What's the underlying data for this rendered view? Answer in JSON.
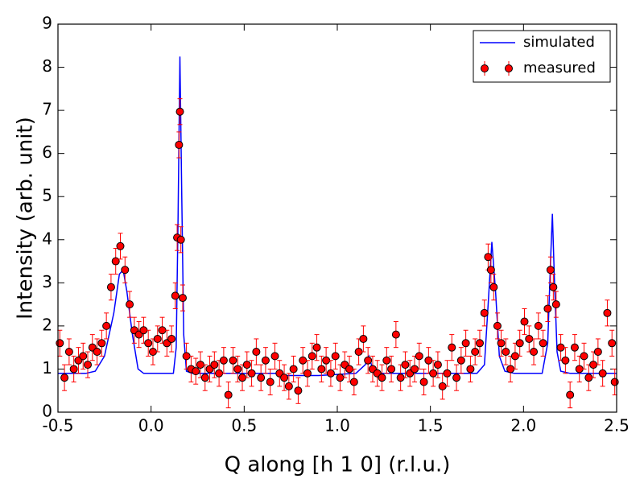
{
  "chart_data": {
    "type": "scatter",
    "xlabel": "Q along [h 1 0]  (r.l.u.)",
    "ylabel": "Intensity (arb. unit)",
    "xlim": [
      -0.5,
      2.5
    ],
    "xticks": [
      -0.5,
      {
        "value": 0,
        "label": "0.0"
      },
      0.5,
      {
        "value": 1,
        "label": "1.0"
      },
      1.5,
      {
        "value": 2,
        "label": "2.0"
      },
      2.5
    ],
    "ylim": [
      0,
      9
    ],
    "yticks": [
      0,
      1,
      2,
      3,
      4,
      5,
      6,
      7,
      8,
      9
    ],
    "legend": "upper right",
    "series": [
      {
        "name": "simulated",
        "color": "#0000ff",
        "kind": "line",
        "x": [
          -0.5,
          -0.35,
          -0.3,
          -0.25,
          -0.2,
          -0.17,
          -0.15,
          -0.13,
          -0.1,
          -0.07,
          -0.04,
          0.12,
          0.135,
          0.145,
          0.155,
          0.165,
          0.175,
          0.19,
          0.22,
          0.7,
          0.72,
          0.9,
          1.1,
          1.15,
          1.17,
          1.19,
          1.22,
          1.75,
          1.79,
          1.81,
          1.83,
          1.85,
          1.87,
          1.9,
          1.95,
          2.1,
          2.13,
          2.145,
          2.155,
          2.165,
          2.18,
          2.2,
          2.25,
          2.5
        ],
        "values": [
          0.9,
          0.9,
          0.95,
          1.3,
          2.3,
          3.2,
          3.3,
          2.8,
          1.8,
          1.0,
          0.9,
          0.9,
          1.5,
          4.5,
          8.25,
          5.0,
          1.8,
          0.95,
          0.9,
          0.9,
          0.85,
          0.85,
          0.9,
          1.1,
          1.3,
          1.0,
          0.9,
          0.9,
          1.1,
          2.5,
          3.95,
          2.8,
          1.3,
          0.95,
          0.9,
          0.9,
          1.6,
          3.5,
          4.6,
          3.2,
          1.4,
          0.95,
          0.9,
          0.9
        ]
      },
      {
        "name": "measured",
        "color": "#ff0000",
        "kind": "errorbar",
        "error": 0.3,
        "x": [
          -0.49,
          -0.465,
          -0.44,
          -0.415,
          -0.39,
          -0.365,
          -0.34,
          -0.315,
          -0.29,
          -0.265,
          -0.24,
          -0.215,
          -0.19,
          -0.165,
          -0.14,
          -0.115,
          -0.09,
          -0.065,
          -0.04,
          -0.015,
          0.01,
          0.035,
          0.06,
          0.085,
          0.11,
          0.13,
          0.14,
          0.15,
          0.155,
          0.16,
          0.17,
          0.19,
          0.215,
          0.24,
          0.265,
          0.29,
          0.315,
          0.34,
          0.365,
          0.39,
          0.415,
          0.44,
          0.465,
          0.49,
          0.515,
          0.54,
          0.565,
          0.59,
          0.615,
          0.64,
          0.665,
          0.69,
          0.715,
          0.74,
          0.765,
          0.79,
          0.815,
          0.84,
          0.865,
          0.89,
          0.915,
          0.94,
          0.965,
          0.99,
          1.015,
          1.04,
          1.065,
          1.09,
          1.115,
          1.14,
          1.165,
          1.19,
          1.215,
          1.24,
          1.265,
          1.29,
          1.315,
          1.34,
          1.365,
          1.39,
          1.415,
          1.44,
          1.465,
          1.49,
          1.515,
          1.54,
          1.565,
          1.59,
          1.615,
          1.64,
          1.665,
          1.69,
          1.715,
          1.74,
          1.765,
          1.79,
          1.81,
          1.825,
          1.84,
          1.86,
          1.88,
          1.905,
          1.93,
          1.955,
          1.98,
          2.005,
          2.03,
          2.055,
          2.08,
          2.105,
          2.13,
          2.145,
          2.16,
          2.175,
          2.2,
          2.225,
          2.25,
          2.275,
          2.3,
          2.325,
          2.35,
          2.375,
          2.4,
          2.425,
          2.45,
          2.475,
          2.49
        ],
        "values": [
          1.6,
          0.8,
          1.4,
          1.0,
          1.2,
          1.3,
          1.1,
          1.5,
          1.4,
          1.6,
          2.0,
          2.9,
          3.5,
          3.85,
          3.3,
          2.5,
          1.9,
          1.8,
          1.9,
          1.6,
          1.4,
          1.7,
          1.9,
          1.6,
          1.7,
          2.7,
          4.05,
          6.2,
          6.97,
          4.0,
          2.65,
          1.3,
          1.0,
          0.95,
          1.1,
          0.8,
          1.0,
          1.1,
          0.9,
          1.2,
          0.4,
          1.2,
          1.0,
          0.8,
          1.1,
          0.9,
          1.4,
          0.8,
          1.2,
          0.7,
          1.3,
          0.9,
          0.8,
          0.6,
          1.0,
          0.5,
          1.2,
          0.9,
          1.3,
          1.5,
          1.0,
          1.2,
          0.9,
          1.3,
          0.8,
          1.1,
          1.0,
          0.7,
          1.4,
          1.7,
          1.2,
          1.0,
          0.9,
          0.8,
          1.2,
          1.0,
          1.8,
          0.8,
          1.1,
          0.9,
          1.0,
          1.3,
          0.7,
          1.2,
          0.9,
          1.1,
          0.6,
          0.9,
          1.5,
          0.8,
          1.2,
          1.6,
          1.0,
          1.4,
          1.6,
          2.3,
          3.6,
          3.3,
          2.9,
          2.0,
          1.6,
          1.4,
          1.0,
          1.3,
          1.6,
          2.1,
          1.7,
          1.4,
          2.0,
          1.6,
          2.4,
          3.3,
          2.9,
          2.5,
          1.5,
          1.2,
          0.4,
          1.5,
          1.0,
          1.3,
          0.8,
          1.1,
          1.4,
          0.9,
          2.3,
          1.6,
          0.7
        ]
      }
    ]
  }
}
